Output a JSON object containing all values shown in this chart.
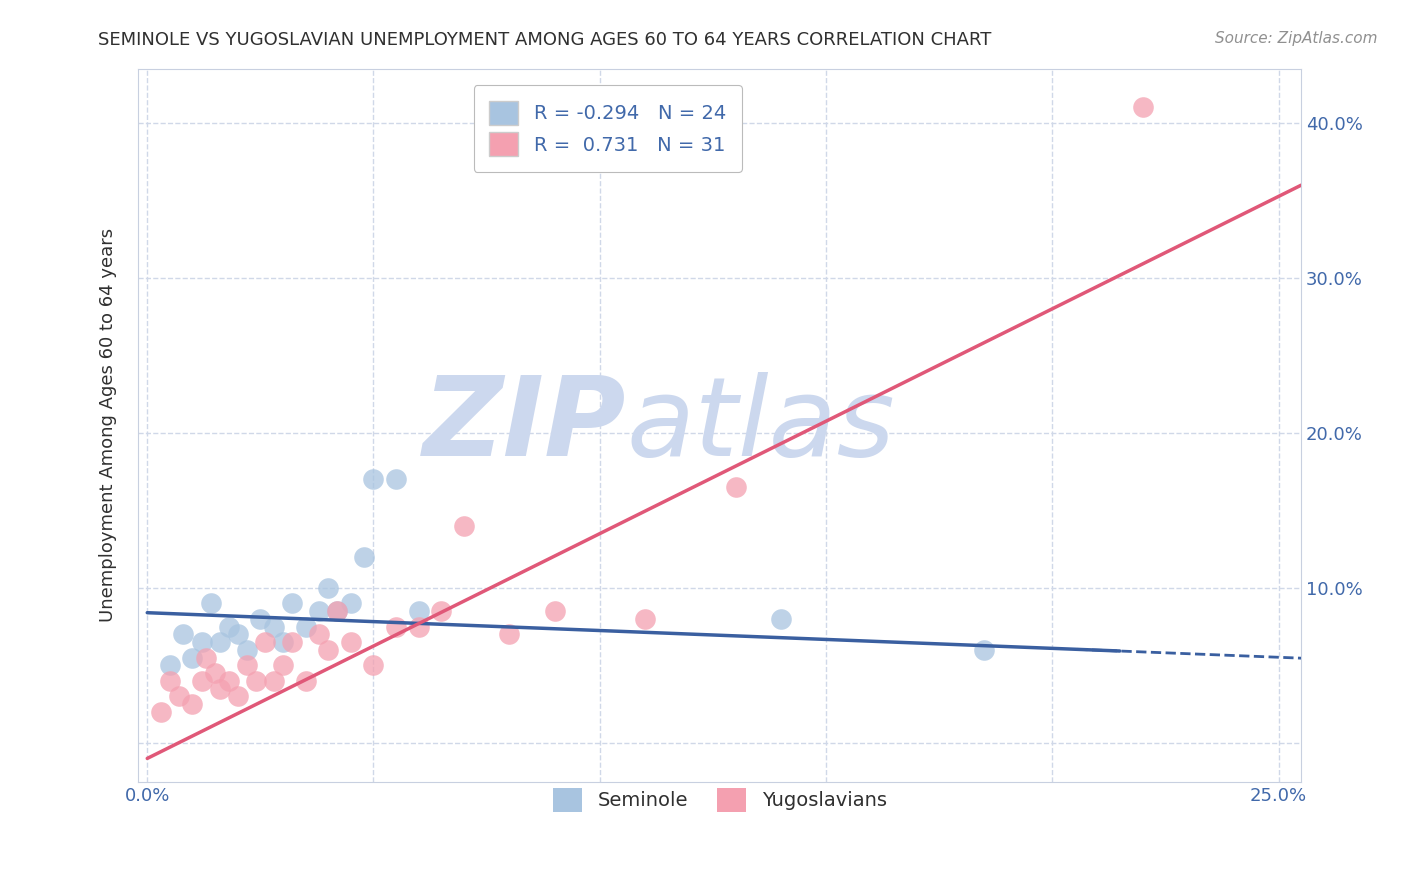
{
  "title": "SEMINOLE VS YUGOSLAVIAN UNEMPLOYMENT AMONG AGES 60 TO 64 YEARS CORRELATION CHART",
  "source": "Source: ZipAtlas.com",
  "ylabel": "Unemployment Among Ages 60 to 64 years",
  "xlabel": "",
  "xlim": [
    -0.002,
    0.255
  ],
  "ylim": [
    -0.025,
    0.435
  ],
  "xticks": [
    0.0,
    0.05,
    0.1,
    0.15,
    0.2,
    0.25
  ],
  "xticklabels": [
    "0.0%",
    "",
    "",
    "",
    "",
    "25.0%"
  ],
  "yticks": [
    0.0,
    0.1,
    0.2,
    0.3,
    0.4
  ],
  "yticklabels": [
    "",
    "10.0%",
    "20.0%",
    "30.0%",
    "40.0%"
  ],
  "seminole_R": -0.294,
  "seminole_N": 24,
  "yugoslavian_R": 0.731,
  "yugoslavian_N": 31,
  "seminole_color": "#a8c4e0",
  "yugoslavian_color": "#f4a0b0",
  "seminole_line_color": "#3a5fa0",
  "yugoslavian_line_color": "#e05878",
  "watermark_zip": "ZIP",
  "watermark_atlas": "atlas",
  "watermark_color": "#ccd8ee",
  "seminole_x": [
    0.005,
    0.008,
    0.01,
    0.012,
    0.014,
    0.016,
    0.018,
    0.02,
    0.022,
    0.025,
    0.028,
    0.03,
    0.032,
    0.035,
    0.038,
    0.04,
    0.042,
    0.045,
    0.048,
    0.05,
    0.055,
    0.06,
    0.14,
    0.185
  ],
  "seminole_y": [
    0.05,
    0.07,
    0.055,
    0.065,
    0.09,
    0.065,
    0.075,
    0.07,
    0.06,
    0.08,
    0.075,
    0.065,
    0.09,
    0.075,
    0.085,
    0.1,
    0.085,
    0.09,
    0.12,
    0.17,
    0.17,
    0.085,
    0.08,
    0.06
  ],
  "yugoslavian_x": [
    0.003,
    0.005,
    0.007,
    0.01,
    0.012,
    0.013,
    0.015,
    0.016,
    0.018,
    0.02,
    0.022,
    0.024,
    0.026,
    0.028,
    0.03,
    0.032,
    0.035,
    0.038,
    0.04,
    0.042,
    0.045,
    0.05,
    0.055,
    0.06,
    0.065,
    0.07,
    0.08,
    0.09,
    0.11,
    0.13,
    0.22
  ],
  "yugoslavian_y": [
    0.02,
    0.04,
    0.03,
    0.025,
    0.04,
    0.055,
    0.045,
    0.035,
    0.04,
    0.03,
    0.05,
    0.04,
    0.065,
    0.04,
    0.05,
    0.065,
    0.04,
    0.07,
    0.06,
    0.085,
    0.065,
    0.05,
    0.075,
    0.075,
    0.085,
    0.14,
    0.07,
    0.085,
    0.08,
    0.165,
    0.41
  ],
  "background_color": "#ffffff",
  "grid_color": "#d0d8e8",
  "axis_color": "#c8d0e0",
  "tick_color": "#4169aa",
  "title_color": "#303030",
  "source_color": "#909090",
  "seminole_line_intercept": 0.084,
  "seminole_line_slope": -0.115,
  "yugoslavian_line_intercept": -0.01,
  "yugoslavian_line_slope": 1.45
}
